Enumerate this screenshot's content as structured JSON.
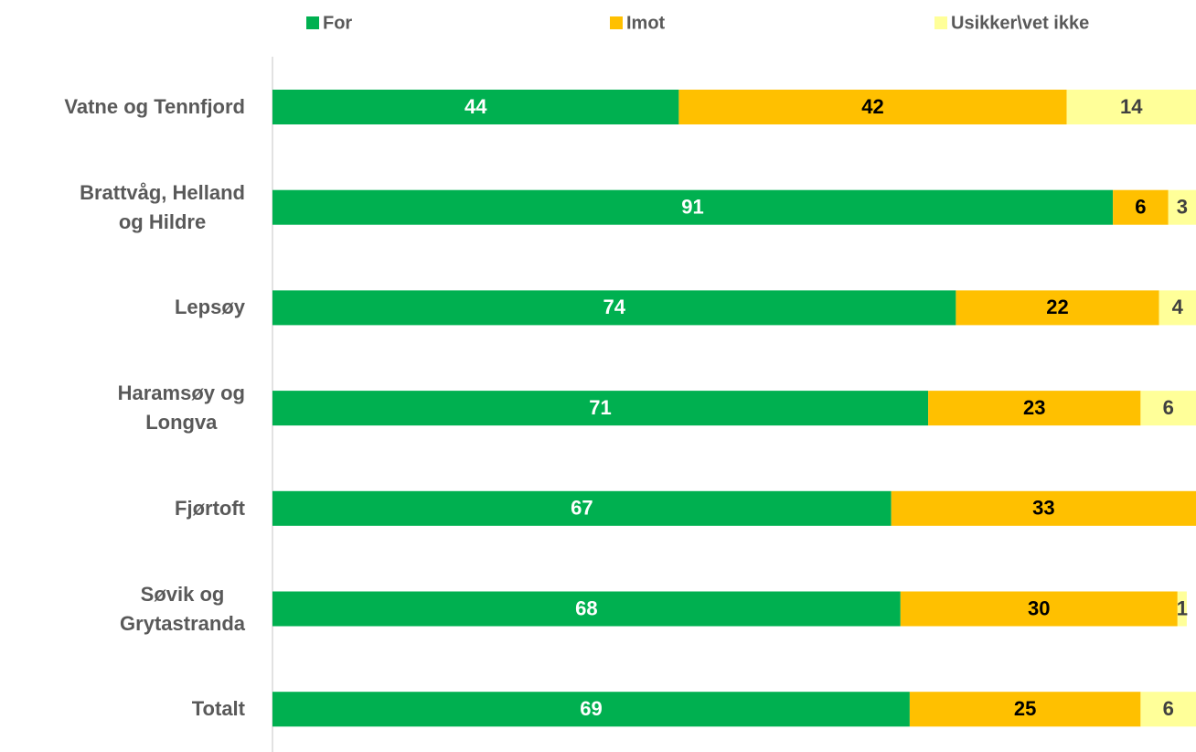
{
  "chart_data": {
    "type": "stacked_barh",
    "categories": [
      "Vatne og Tennfjord",
      "Brattvåg, Helland\nog Hildre",
      "Lepsøy",
      "Haramsøy og\nLongva",
      "Fjørtoft",
      "Søvik og\nGrytastranda",
      "Totalt"
    ],
    "series": [
      {
        "name": "For",
        "color": "#00b050",
        "label_color": "#ffffff",
        "values": [
          44,
          91,
          74,
          71,
          67,
          68,
          69
        ]
      },
      {
        "name": "Imot",
        "color": "#ffc000",
        "label_color": "#000000",
        "values": [
          42,
          6,
          22,
          23,
          33,
          30,
          25
        ]
      },
      {
        "name": "Usikker\\vet ikke",
        "color": "#ffff99",
        "label_color": "#404040",
        "values": [
          14,
          3,
          4,
          6,
          null,
          1,
          6
        ]
      }
    ],
    "xlim": [
      0,
      100
    ],
    "legend": "top"
  }
}
